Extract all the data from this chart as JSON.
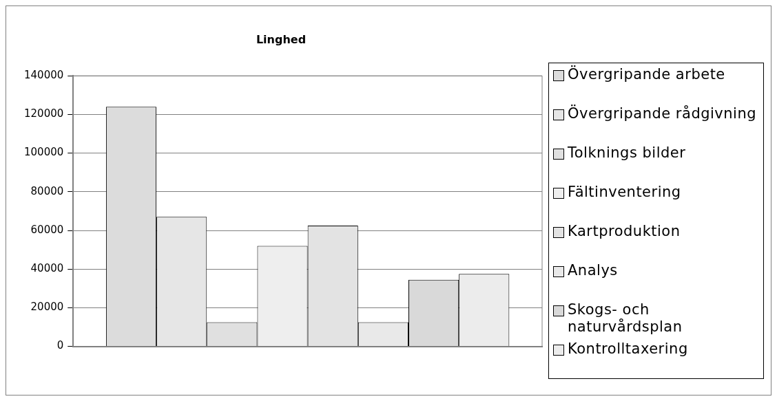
{
  "chart_data": {
    "type": "bar",
    "title": "Linghed",
    "categories": [
      null
    ],
    "series": [
      {
        "name": "Övergripande arbete",
        "color": "#dcdcdc",
        "values": [
          124000
        ]
      },
      {
        "name": "Övergripande rådgivning",
        "color": "#e6e6e6",
        "values": [
          67000
        ]
      },
      {
        "name": "Tolknings bilder",
        "color": "#e0e0e0",
        "values": [
          12500
        ]
      },
      {
        "name": "Fältinventering",
        "color": "#eeeeee",
        "values": [
          52000
        ]
      },
      {
        "name": "Kartproduktion",
        "color": "#e3e3e3",
        "values": [
          62500
        ]
      },
      {
        "name": "Analys",
        "color": "#e9e9e9",
        "values": [
          12500
        ]
      },
      {
        "name": "Skogs- och naturvårdsplan",
        "color": "#d9d9d9",
        "values": [
          34500
        ]
      },
      {
        "name": "Kontrolltaxering",
        "color": "#ececec",
        "values": [
          37500
        ]
      }
    ],
    "ylim": [
      0,
      140000
    ],
    "yticks": [
      0,
      20000,
      40000,
      60000,
      80000,
      100000,
      120000,
      140000
    ],
    "grid": "y",
    "legend": "right"
  }
}
